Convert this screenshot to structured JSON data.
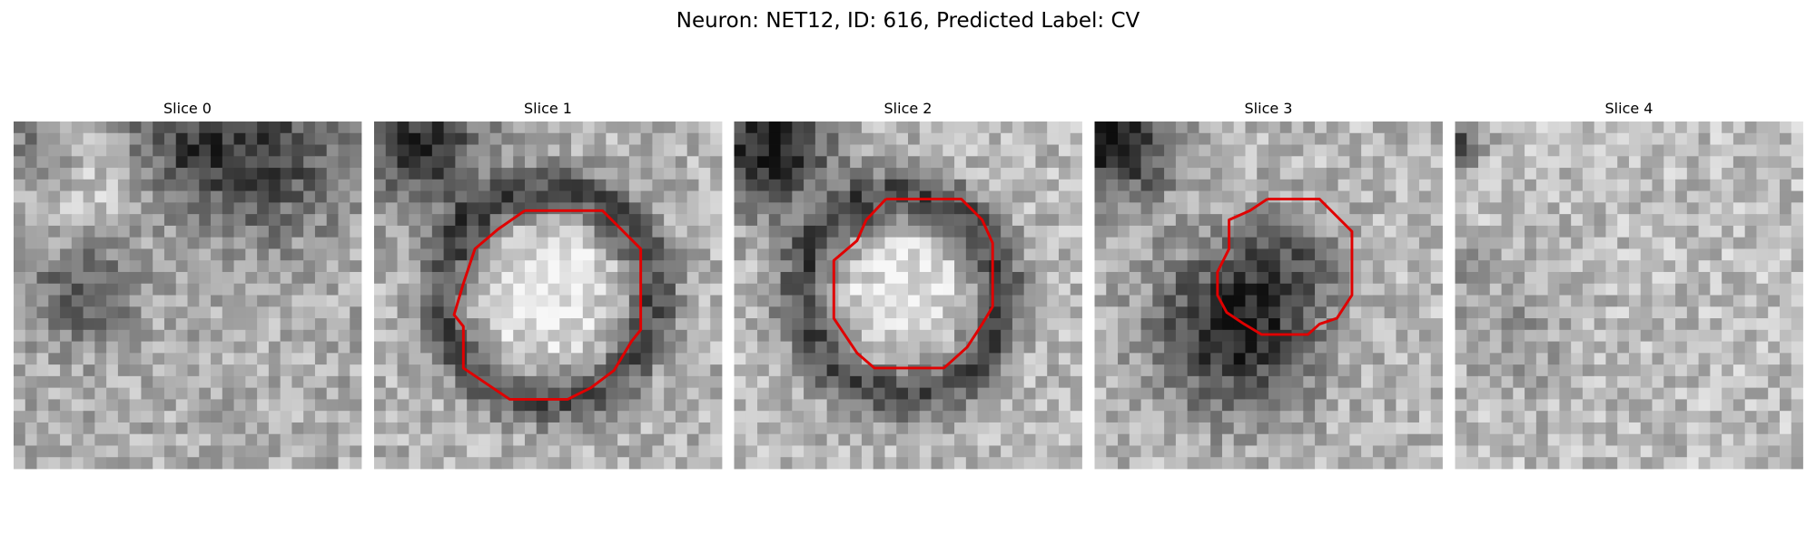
{
  "title": "Neuron: NET12, ID: 616, Predicted Label: CV",
  "panels": [
    {
      "title": "Slice 0"
    },
    {
      "title": "Slice 1"
    },
    {
      "title": "Slice 2"
    },
    {
      "title": "Slice 3"
    },
    {
      "title": "Slice 4"
    }
  ]
}
